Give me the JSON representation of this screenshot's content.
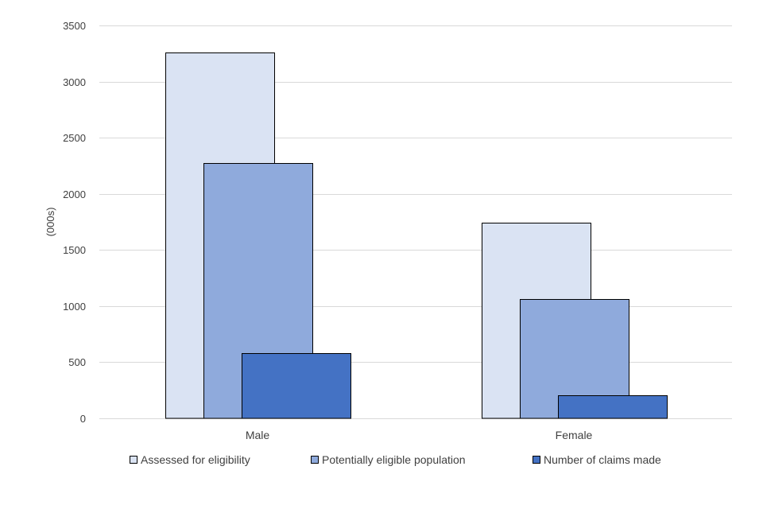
{
  "chart_data": {
    "type": "bar",
    "layout": "overlapping-grouped",
    "title": "",
    "xlabel": "",
    "ylabel": "(000s)",
    "ylim": [
      0,
      3500
    ],
    "yticks": [
      0,
      500,
      1000,
      1500,
      2000,
      2500,
      3000,
      3500
    ],
    "grid": true,
    "legend_position": "bottom",
    "categories": [
      "Male",
      "Female"
    ],
    "series": [
      {
        "name": "Assessed for eligibility",
        "color": "#dae3f3",
        "values": [
          3260,
          1745
        ]
      },
      {
        "name": "Potentially eligible population",
        "color": "#8faadc",
        "values": [
          2275,
          1065
        ]
      },
      {
        "name": "Number of claims made",
        "color": "#4472c4",
        "values": [
          580,
          205
        ]
      }
    ]
  }
}
